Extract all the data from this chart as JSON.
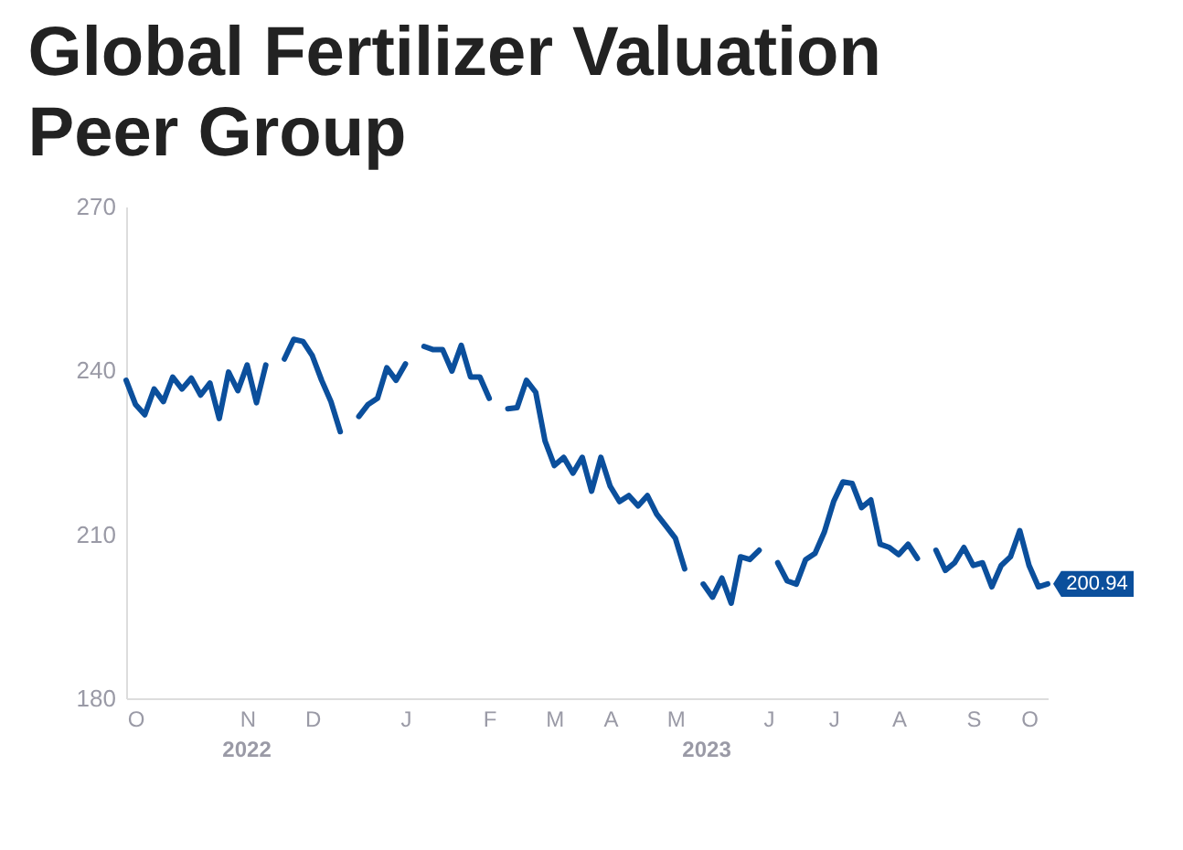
{
  "chart_data": {
    "type": "line",
    "title": "Global Fertilizer Valuation Peer Group",
    "color": "#0b4f9c",
    "grid": false,
    "annotations": [
      "2022",
      "2023"
    ],
    "ylim": [
      180,
      270
    ],
    "yticks": [
      180,
      210,
      240,
      270
    ],
    "categories": [
      null,
      "O",
      null,
      null,
      null,
      null,
      null,
      null,
      null,
      null,
      null,
      null,
      null,
      "N",
      null,
      null,
      null,
      null,
      null,
      null,
      "D",
      null,
      null,
      null,
      null,
      null,
      null,
      null,
      null,
      null,
      "J",
      null,
      null,
      null,
      null,
      null,
      null,
      null,
      null,
      "F",
      null,
      null,
      null,
      null,
      null,
      null,
      "M",
      null,
      null,
      null,
      null,
      null,
      "A",
      null,
      null,
      null,
      null,
      null,
      null,
      "M",
      null,
      null,
      null,
      null,
      null,
      null,
      null,
      null,
      null,
      "J",
      null,
      null,
      null,
      null,
      null,
      null,
      "J",
      null,
      null,
      null,
      null,
      null,
      null,
      "A",
      null,
      null,
      null,
      null,
      null,
      null,
      null,
      "S",
      null,
      null,
      null,
      null,
      null,
      "O",
      null,
      null
    ],
    "values": [
      238.2,
      233.8,
      231.9,
      236.6,
      234.3,
      238.8,
      236.6,
      238.6,
      235.5,
      237.7,
      231.2,
      239.7,
      236.3,
      241.0,
      234.1,
      241.0,
      null,
      242.1,
      245.7,
      245.3,
      242.7,
      238.2,
      234.3,
      228.8,
      null,
      231.6,
      233.8,
      234.9,
      240.5,
      238.2,
      241.2,
      null,
      244.4,
      243.8,
      243.8,
      239.9,
      244.6,
      238.8,
      238.8,
      234.9,
      null,
      233.0,
      233.2,
      238.2,
      236.0,
      227.1,
      222.6,
      224.1,
      221.2,
      224.1,
      217.9,
      224.1,
      218.8,
      216.0,
      217.1,
      215.2,
      217.1,
      213.7,
      211.5,
      209.3,
      203.7,
      null,
      200.9,
      198.5,
      202.0,
      197.4,
      205.9,
      205.4,
      207.1,
      null,
      204.8,
      201.5,
      200.9,
      205.4,
      206.5,
      210.4,
      216.0,
      219.6,
      219.3,
      214.9,
      216.3,
      208.2,
      207.6,
      206.3,
      208.2,
      205.6,
      null,
      207.1,
      203.4,
      204.8,
      207.6,
      204.3,
      204.8,
      200.4,
      204.3,
      205.9,
      210.7,
      204.3,
      200.4,
      200.94
    ],
    "value_labels": [
      null,
      null,
      null,
      null,
      null,
      null,
      null,
      null,
      null,
      null,
      null,
      null,
      null,
      null,
      null,
      null,
      null,
      null,
      null,
      null,
      null,
      null,
      null,
      null,
      null,
      null,
      null,
      null,
      null,
      null,
      null,
      null,
      null,
      null,
      null,
      null,
      null,
      null,
      null,
      null,
      null,
      null,
      null,
      null,
      null,
      null,
      null,
      null,
      null,
      null,
      null,
      null,
      null,
      null,
      null,
      null,
      null,
      null,
      null,
      null,
      null,
      null,
      null,
      null,
      null,
      null,
      null,
      null,
      null,
      null,
      null,
      null,
      null,
      null,
      null,
      null,
      null,
      null,
      null,
      null,
      null,
      null,
      null,
      null,
      null,
      null,
      null,
      null,
      null,
      null,
      null,
      null,
      null,
      null,
      null,
      null,
      null,
      null,
      null,
      "200.94"
    ]
  }
}
